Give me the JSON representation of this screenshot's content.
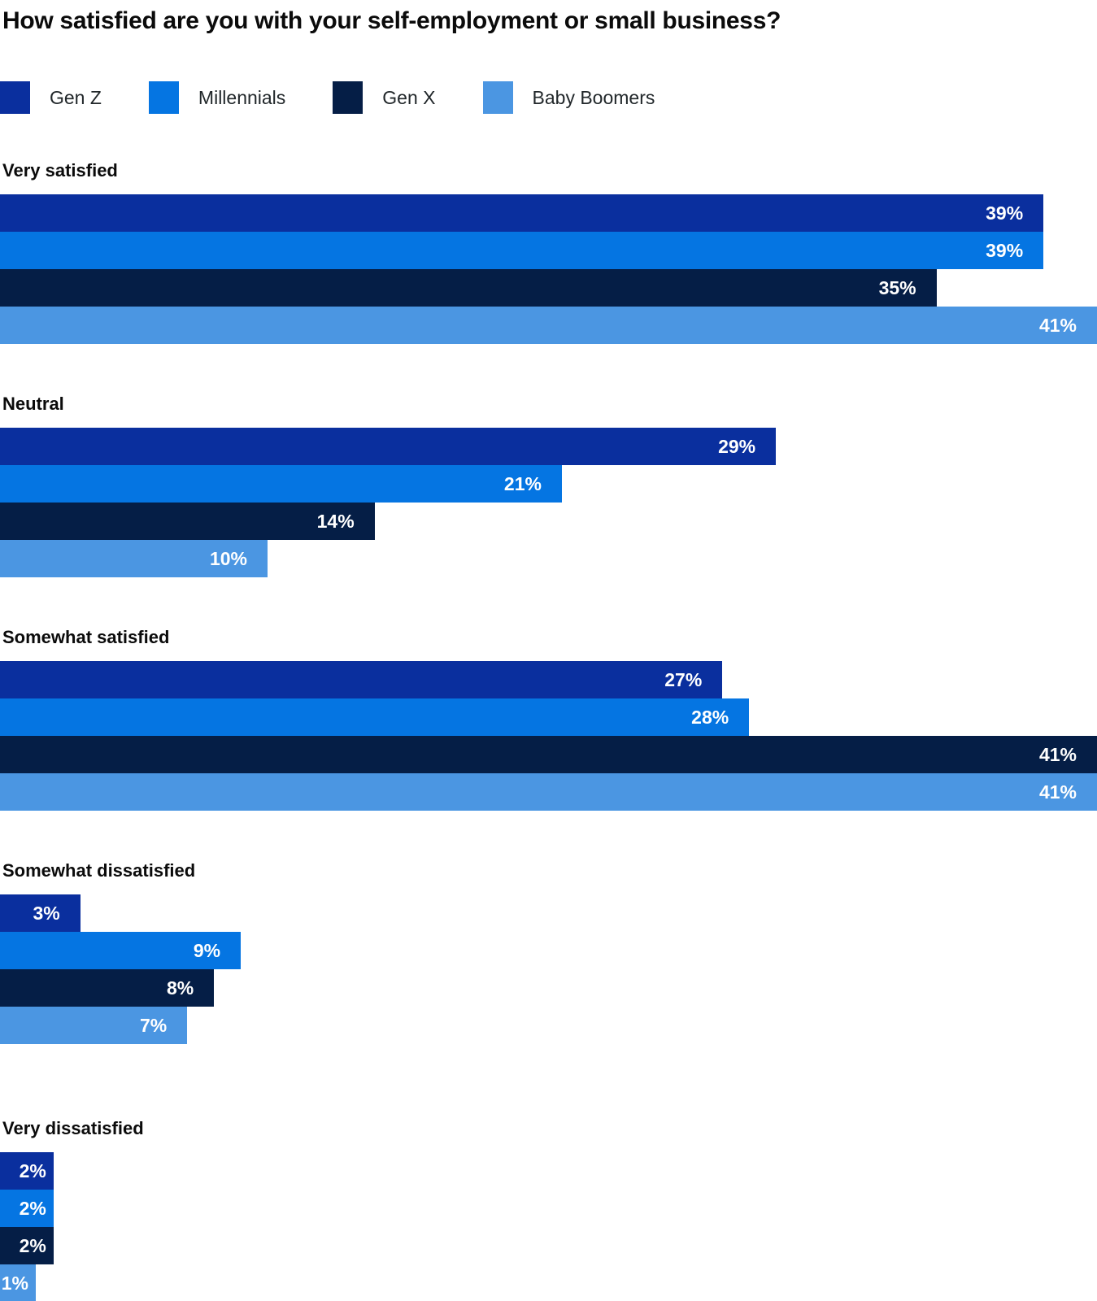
{
  "title": "How satisfied are you with your self-employment or small business?",
  "colors": {
    "background": "#ffffff",
    "title_text": "#0b0b0b",
    "legend_text": "#21272a",
    "bar_value_text": "#ffffff",
    "gen_z": "#0a2f9e",
    "millennials": "#0575e2",
    "gen_x": "#051e46",
    "baby_boomers": "#4b96e2"
  },
  "legend": [
    {
      "label": "Gen Z"
    },
    {
      "label": "Millennials"
    },
    {
      "label": "Gen X"
    },
    {
      "label": "Baby Boomers"
    }
  ],
  "chart_data": {
    "type": "bar",
    "orientation": "horizontal",
    "unit": "%",
    "grid": false,
    "legend_position": "top",
    "axis_labels_visible": false,
    "value_labels": "inside-end",
    "max_value": 41,
    "categories": [
      "Very satisfied",
      "Neutral",
      "Somewhat satisfied",
      "Somewhat dissatisfied",
      "Very dissatisfied"
    ],
    "series": [
      {
        "name": "Gen Z",
        "color": "#0a2f9e",
        "values": [
          39,
          29,
          27,
          3,
          2
        ]
      },
      {
        "name": "Millennials",
        "color": "#0575e2",
        "values": [
          39,
          21,
          28,
          9,
          2
        ]
      },
      {
        "name": "Gen X",
        "color": "#051e46",
        "values": [
          35,
          14,
          41,
          8,
          2
        ]
      },
      {
        "name": "Baby Boomers",
        "color": "#4b96e2",
        "values": [
          41,
          10,
          41,
          7,
          1
        ]
      }
    ]
  }
}
